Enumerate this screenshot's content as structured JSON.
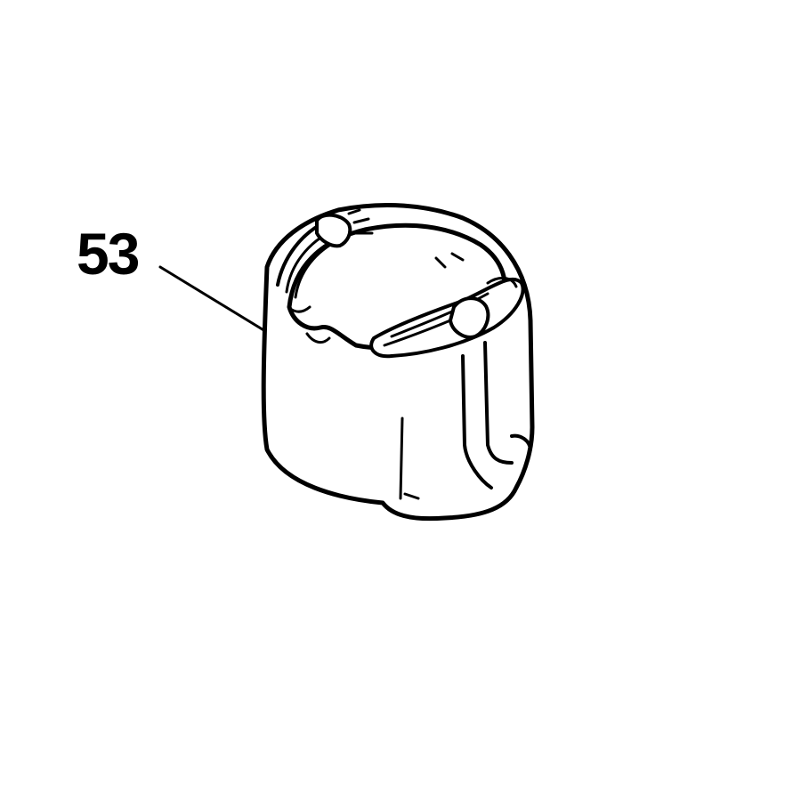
{
  "figure": {
    "callout_number": "53",
    "part_icon": "stator-field-coil-icon",
    "colors": {
      "background": "#ffffff",
      "ink": "#000000"
    }
  }
}
